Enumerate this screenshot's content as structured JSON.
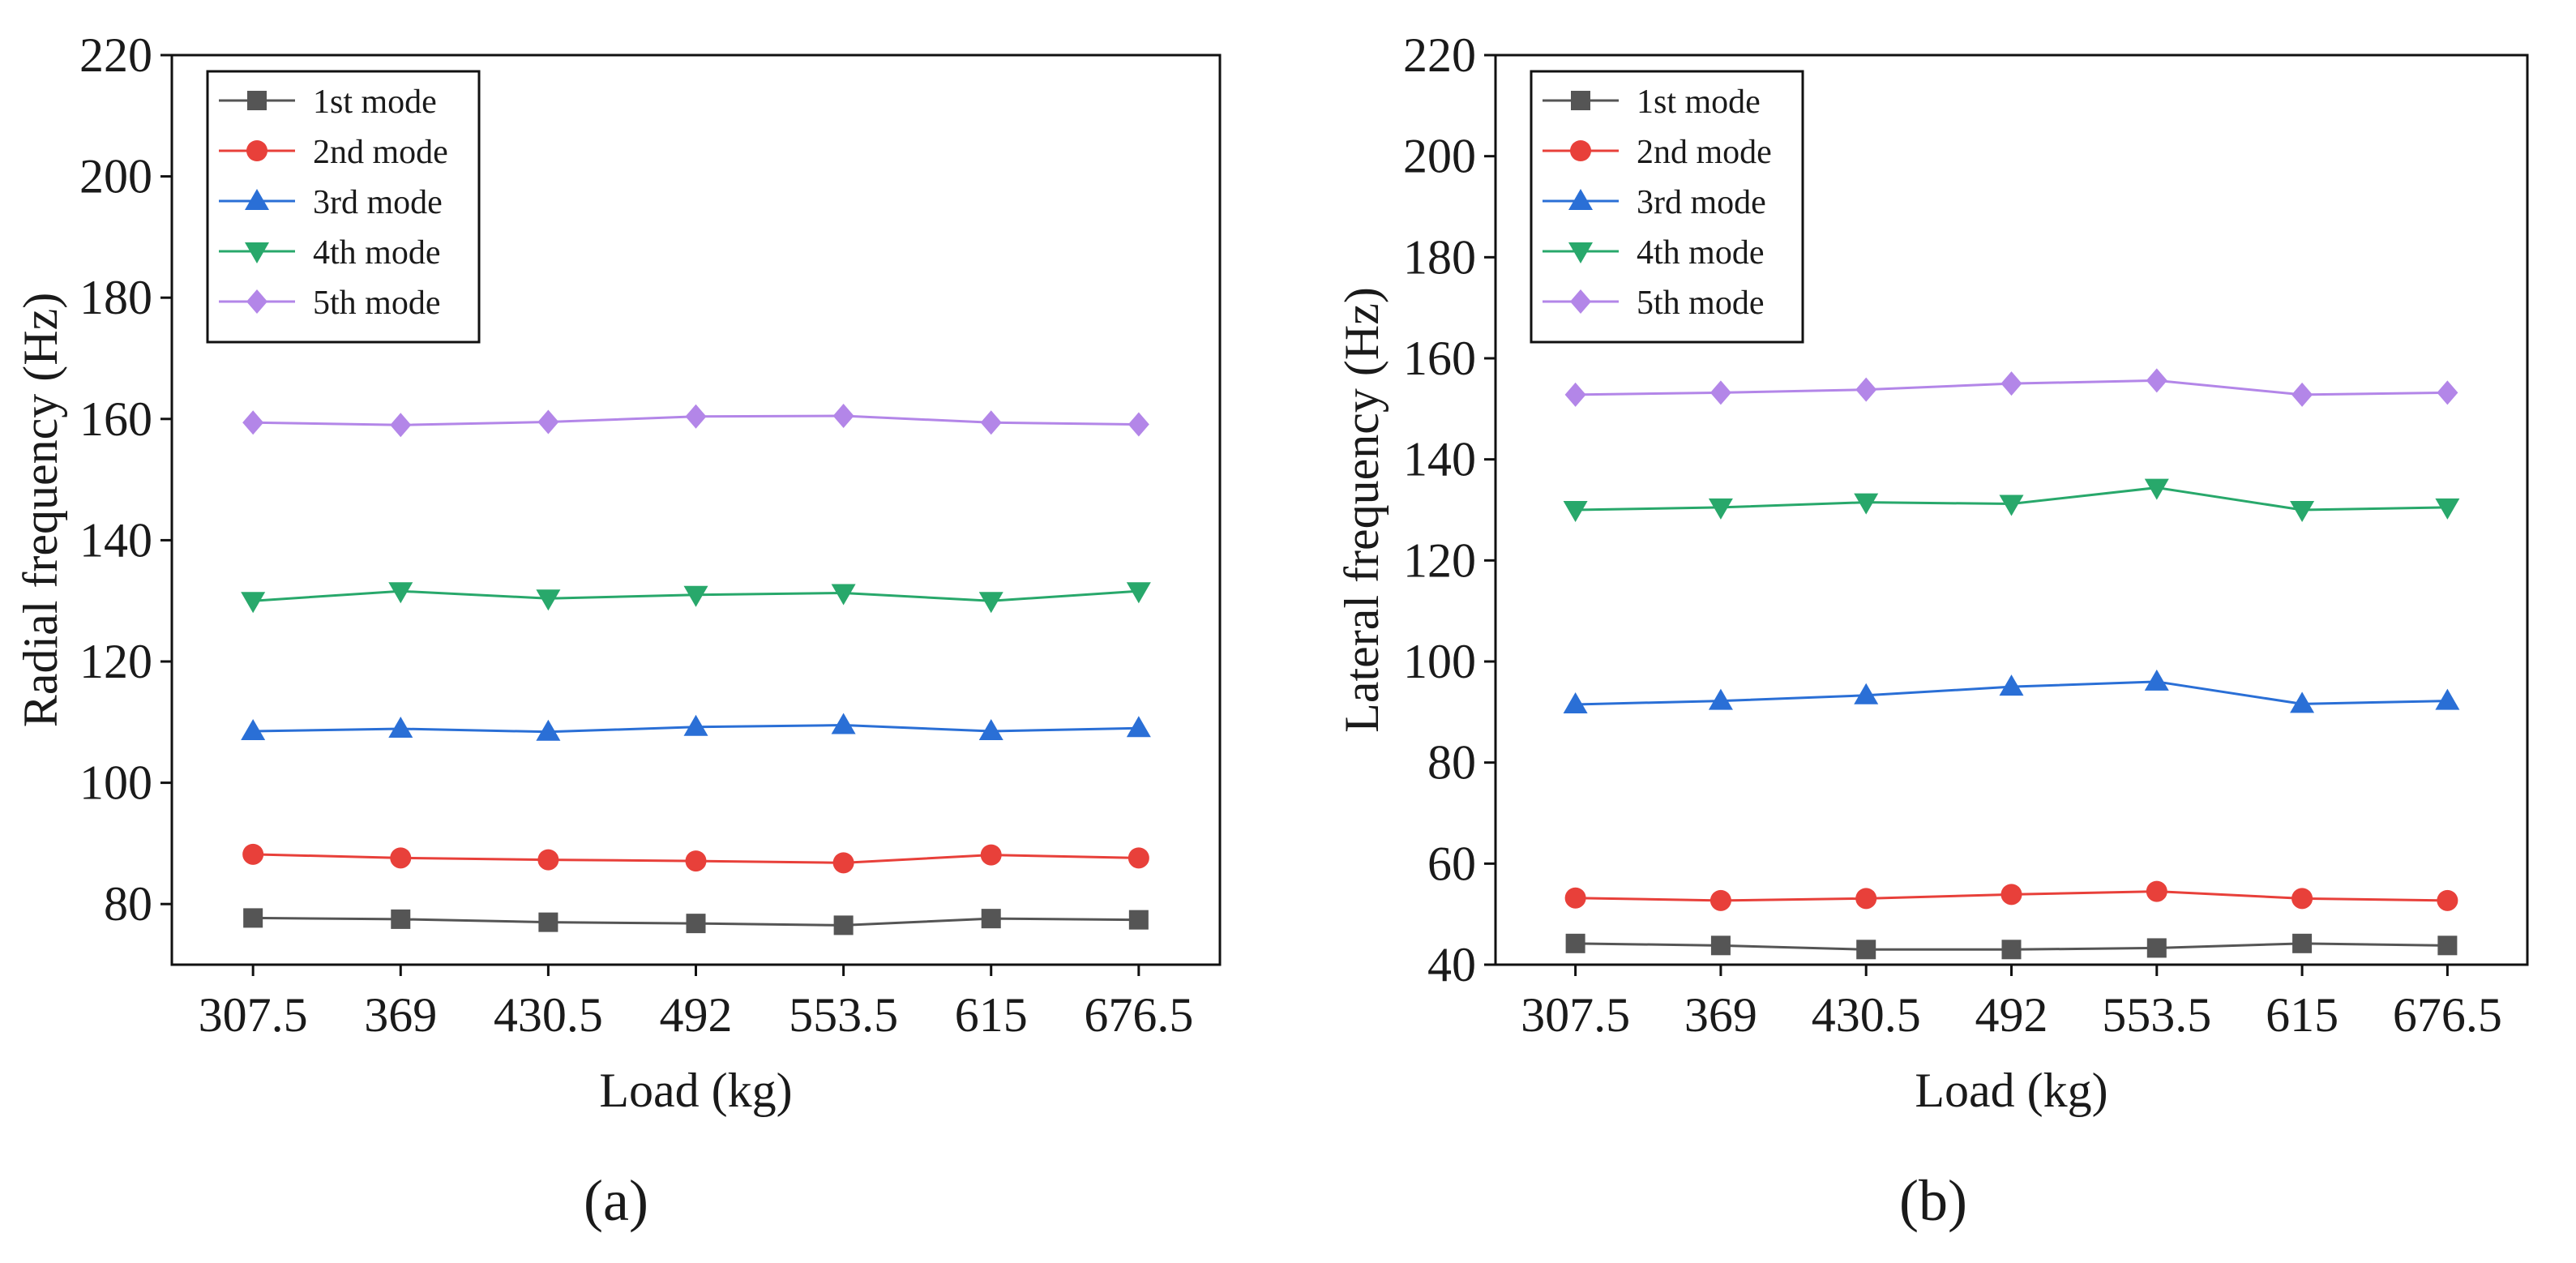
{
  "colors": {
    "mode1": "#555555",
    "mode2": "#e8403a",
    "mode3": "#2a6fd6",
    "mode4": "#28a86b",
    "mode5": "#b386e8",
    "axis": "#111111"
  },
  "chart_data": [
    {
      "type": "line",
      "panel_label": "(a)",
      "title": "",
      "xlabel": "Load (kg)",
      "ylabel": "Radial frequency (Hz)",
      "categories": [
        "307.5",
        "369",
        "430.5",
        "492",
        "553.5",
        "615",
        "676.5"
      ],
      "ylim": [
        70,
        220
      ],
      "yticks": [
        "80",
        "100",
        "120",
        "140",
        "160",
        "180",
        "200",
        "220"
      ],
      "legend_position": "top-left",
      "grid": false,
      "series": [
        {
          "name": "1st mode",
          "marker": "square",
          "color_key": "mode1",
          "values": [
            77.7,
            77.5,
            77.0,
            76.8,
            76.5,
            77.6,
            77.4
          ]
        },
        {
          "name": "2nd mode",
          "marker": "circle",
          "color_key": "mode2",
          "values": [
            88.2,
            87.6,
            87.3,
            87.1,
            86.8,
            88.1,
            87.6
          ]
        },
        {
          "name": "3rd mode",
          "marker": "triangle-up",
          "color_key": "mode3",
          "values": [
            108.5,
            108.9,
            108.4,
            109.2,
            109.5,
            108.5,
            109.0
          ]
        },
        {
          "name": "4th mode",
          "marker": "triangle-down",
          "color_key": "mode4",
          "values": [
            130.0,
            131.6,
            130.4,
            131.0,
            131.3,
            130.0,
            131.6
          ]
        },
        {
          "name": "5th mode",
          "marker": "diamond",
          "color_key": "mode5",
          "values": [
            159.4,
            159.0,
            159.5,
            160.4,
            160.5,
            159.4,
            159.1
          ]
        }
      ]
    },
    {
      "type": "line",
      "panel_label": "(b)",
      "title": "",
      "xlabel": "Load (kg)",
      "ylabel": "Lateral frequency (Hz)",
      "categories": [
        "307.5",
        "369",
        "430.5",
        "492",
        "553.5",
        "615",
        "676.5"
      ],
      "ylim": [
        40,
        220
      ],
      "yticks": [
        "40",
        "60",
        "80",
        "100",
        "120",
        "140",
        "160",
        "180",
        "200",
        "220"
      ],
      "legend_position": "top-left",
      "grid": false,
      "series": [
        {
          "name": "1st mode",
          "marker": "square",
          "color_key": "mode1",
          "values": [
            44.2,
            43.8,
            43.0,
            43.0,
            43.3,
            44.2,
            43.8
          ]
        },
        {
          "name": "2nd mode",
          "marker": "circle",
          "color_key": "mode2",
          "values": [
            53.2,
            52.7,
            53.1,
            53.9,
            54.5,
            53.1,
            52.7
          ]
        },
        {
          "name": "3rd mode",
          "marker": "triangle-up",
          "color_key": "mode3",
          "values": [
            91.5,
            92.2,
            93.3,
            95.0,
            96.0,
            91.6,
            92.2
          ]
        },
        {
          "name": "4th mode",
          "marker": "triangle-down",
          "color_key": "mode4",
          "values": [
            130.0,
            130.5,
            131.5,
            131.2,
            134.4,
            130.0,
            130.5
          ]
        },
        {
          "name": "5th mode",
          "marker": "diamond",
          "color_key": "mode5",
          "values": [
            152.8,
            153.2,
            153.8,
            155.0,
            155.6,
            152.8,
            153.2
          ]
        }
      ]
    }
  ]
}
